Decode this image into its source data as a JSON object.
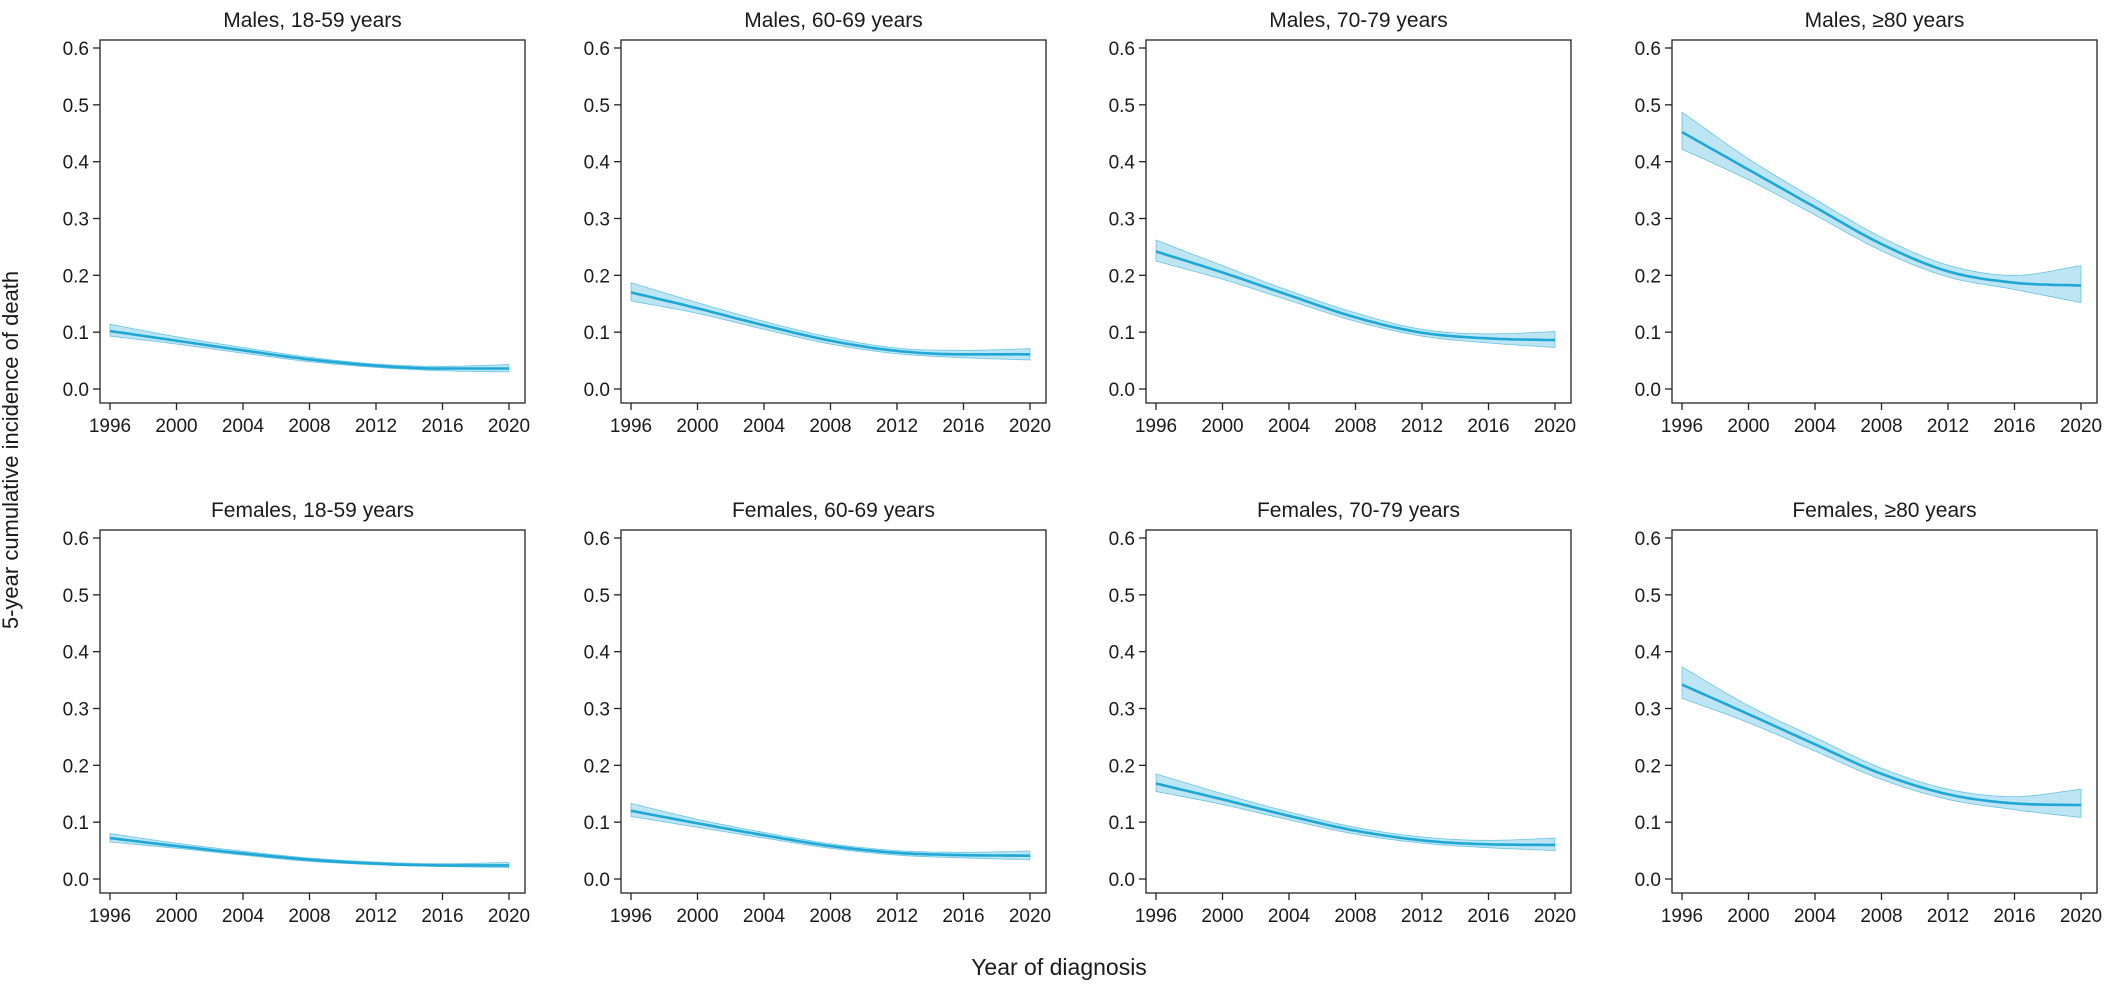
{
  "figure": {
    "ylabel": "5-year cumulative incidence of death",
    "xlabel": "Year of diagnosis",
    "line_color": "#1fa8d6",
    "band_color": "#a8dcef"
  },
  "chart_data": [
    {
      "type": "line",
      "title": "Males, 18-59 years",
      "xlim": [
        1996,
        2020
      ],
      "ylim": [
        0,
        0.6
      ],
      "xticks": [
        "1996",
        "2000",
        "2004",
        "2008",
        "2012",
        "2016",
        "2020"
      ],
      "yticks": [
        "0.0",
        "0.1",
        "0.2",
        "0.3",
        "0.4",
        "0.5",
        "0.6"
      ],
      "x": [
        1996,
        2000,
        2004,
        2008,
        2012,
        2016,
        2020
      ],
      "series": [
        {
          "values": [
            0.102,
            0.085,
            0.068,
            0.052,
            0.041,
            0.036,
            0.036
          ],
          "lower": [
            0.093,
            0.079,
            0.063,
            0.048,
            0.038,
            0.032,
            0.03
          ],
          "upper": [
            0.114,
            0.092,
            0.073,
            0.056,
            0.044,
            0.04,
            0.043
          ]
        }
      ]
    },
    {
      "type": "line",
      "title": "Males, 60-69 years",
      "xlim": [
        1996,
        2020
      ],
      "ylim": [
        0,
        0.6
      ],
      "xticks": [
        "1996",
        "2000",
        "2004",
        "2008",
        "2012",
        "2016",
        "2020"
      ],
      "yticks": [
        "0.0",
        "0.1",
        "0.2",
        "0.3",
        "0.4",
        "0.5",
        "0.6"
      ],
      "x": [
        1996,
        2000,
        2004,
        2008,
        2012,
        2016,
        2020
      ],
      "series": [
        {
          "values": [
            0.17,
            0.142,
            0.112,
            0.085,
            0.067,
            0.061,
            0.061
          ],
          "lower": [
            0.155,
            0.133,
            0.105,
            0.079,
            0.062,
            0.055,
            0.051
          ],
          "upper": [
            0.187,
            0.152,
            0.119,
            0.091,
            0.072,
            0.068,
            0.071
          ]
        }
      ]
    },
    {
      "type": "line",
      "title": "Males, 70-79 years",
      "xlim": [
        1996,
        2020
      ],
      "ylim": [
        0,
        0.6
      ],
      "xticks": [
        "1996",
        "2000",
        "2004",
        "2008",
        "2012",
        "2016",
        "2020"
      ],
      "yticks": [
        "0.0",
        "0.1",
        "0.2",
        "0.3",
        "0.4",
        "0.5",
        "0.6"
      ],
      "x": [
        1996,
        2000,
        2004,
        2008,
        2012,
        2016,
        2020
      ],
      "series": [
        {
          "values": [
            0.242,
            0.205,
            0.165,
            0.126,
            0.099,
            0.089,
            0.086
          ],
          "lower": [
            0.225,
            0.193,
            0.156,
            0.119,
            0.093,
            0.081,
            0.073
          ],
          "upper": [
            0.262,
            0.217,
            0.173,
            0.134,
            0.105,
            0.097,
            0.101
          ]
        }
      ]
    },
    {
      "type": "line",
      "title": "Males, ≥80 years",
      "xlim": [
        1996,
        2020
      ],
      "ylim": [
        0,
        0.6
      ],
      "xticks": [
        "1996",
        "2000",
        "2004",
        "2008",
        "2012",
        "2016",
        "2020"
      ],
      "yticks": [
        "0.0",
        "0.1",
        "0.2",
        "0.3",
        "0.4",
        "0.5",
        "0.6"
      ],
      "x": [
        1996,
        2000,
        2004,
        2008,
        2012,
        2016,
        2020
      ],
      "series": [
        {
          "values": [
            0.452,
            0.386,
            0.32,
            0.255,
            0.207,
            0.187,
            0.182
          ],
          "lower": [
            0.422,
            0.368,
            0.306,
            0.243,
            0.197,
            0.175,
            0.152
          ],
          "upper": [
            0.487,
            0.405,
            0.334,
            0.267,
            0.218,
            0.2,
            0.217
          ]
        }
      ]
    },
    {
      "type": "line",
      "title": "Females, 18-59 years",
      "xlim": [
        1996,
        2020
      ],
      "ylim": [
        0,
        0.6
      ],
      "xticks": [
        "1996",
        "2000",
        "2004",
        "2008",
        "2012",
        "2016",
        "2020"
      ],
      "yticks": [
        "0.0",
        "0.1",
        "0.2",
        "0.3",
        "0.4",
        "0.5",
        "0.6"
      ],
      "x": [
        1996,
        2000,
        2004,
        2008,
        2012,
        2016,
        2020
      ],
      "series": [
        {
          "values": [
            0.072,
            0.058,
            0.045,
            0.034,
            0.027,
            0.024,
            0.024
          ],
          "lower": [
            0.065,
            0.054,
            0.042,
            0.031,
            0.025,
            0.022,
            0.02
          ],
          "upper": [
            0.08,
            0.063,
            0.049,
            0.037,
            0.03,
            0.027,
            0.029
          ]
        }
      ]
    },
    {
      "type": "line",
      "title": "Females, 60-69 years",
      "xlim": [
        1996,
        2020
      ],
      "ylim": [
        0,
        0.6
      ],
      "xticks": [
        "1996",
        "2000",
        "2004",
        "2008",
        "2012",
        "2016",
        "2020"
      ],
      "yticks": [
        "0.0",
        "0.1",
        "0.2",
        "0.3",
        "0.4",
        "0.5",
        "0.6"
      ],
      "x": [
        1996,
        2000,
        2004,
        2008,
        2012,
        2016,
        2020
      ],
      "series": [
        {
          "values": [
            0.12,
            0.098,
            0.077,
            0.058,
            0.046,
            0.042,
            0.041
          ],
          "lower": [
            0.11,
            0.091,
            0.072,
            0.054,
            0.042,
            0.037,
            0.034
          ],
          "upper": [
            0.133,
            0.105,
            0.082,
            0.062,
            0.05,
            0.047,
            0.049
          ]
        }
      ]
    },
    {
      "type": "line",
      "title": "Females, 70-79 years",
      "xlim": [
        1996,
        2020
      ],
      "ylim": [
        0,
        0.6
      ],
      "xticks": [
        "1996",
        "2000",
        "2004",
        "2008",
        "2012",
        "2016",
        "2020"
      ],
      "yticks": [
        "0.0",
        "0.1",
        "0.2",
        "0.3",
        "0.4",
        "0.5",
        "0.6"
      ],
      "x": [
        1996,
        2000,
        2004,
        2008,
        2012,
        2016,
        2020
      ],
      "series": [
        {
          "values": [
            0.168,
            0.14,
            0.111,
            0.085,
            0.068,
            0.061,
            0.06
          ],
          "lower": [
            0.154,
            0.131,
            0.104,
            0.079,
            0.063,
            0.055,
            0.05
          ],
          "upper": [
            0.185,
            0.15,
            0.118,
            0.091,
            0.074,
            0.068,
            0.072
          ]
        }
      ]
    },
    {
      "type": "line",
      "title": "Females, ≥80 years",
      "xlim": [
        1996,
        2020
      ],
      "ylim": [
        0,
        0.6
      ],
      "xticks": [
        "1996",
        "2000",
        "2004",
        "2008",
        "2012",
        "2016",
        "2020"
      ],
      "yticks": [
        "0.0",
        "0.1",
        "0.2",
        "0.3",
        "0.4",
        "0.5",
        "0.6"
      ],
      "x": [
        1996,
        2000,
        2004,
        2008,
        2012,
        2016,
        2020
      ],
      "series": [
        {
          "values": [
            0.342,
            0.29,
            0.237,
            0.185,
            0.149,
            0.133,
            0.13
          ],
          "lower": [
            0.318,
            0.275,
            0.225,
            0.175,
            0.14,
            0.122,
            0.108
          ],
          "upper": [
            0.373,
            0.305,
            0.249,
            0.195,
            0.158,
            0.145,
            0.158
          ]
        }
      ]
    }
  ]
}
